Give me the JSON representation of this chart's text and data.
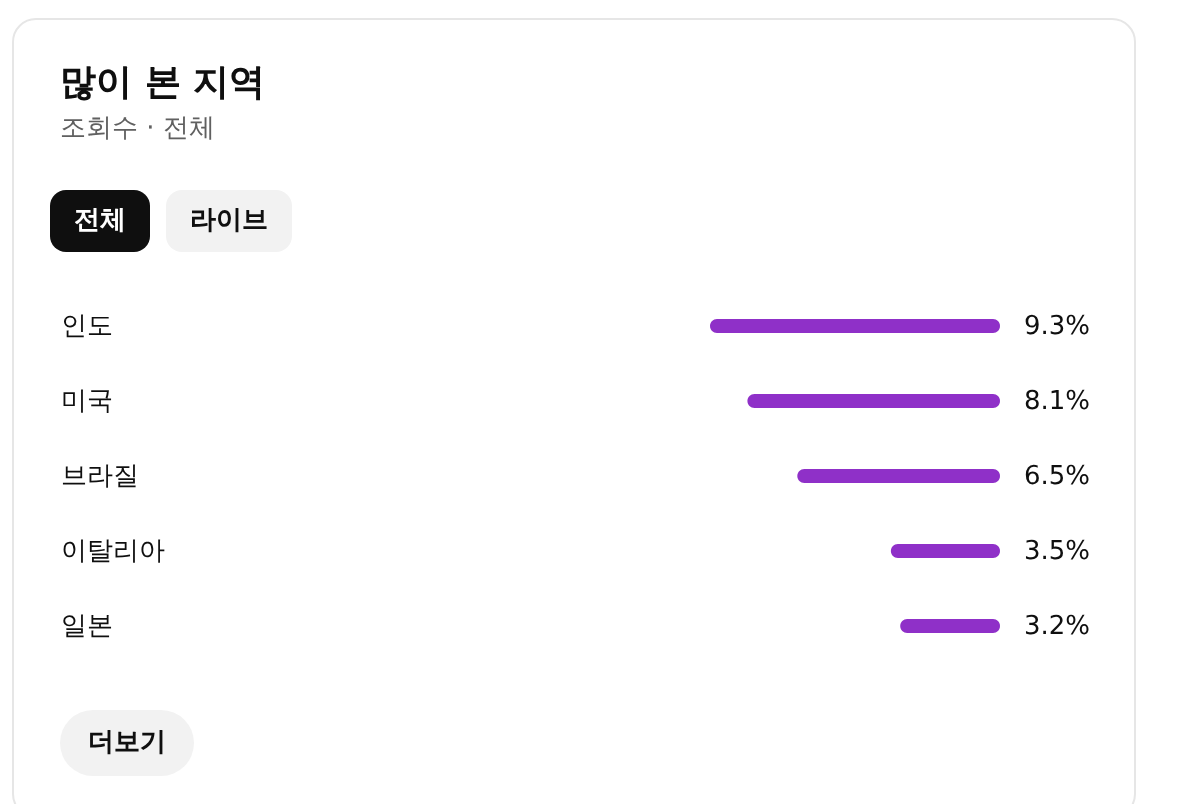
{
  "chart_data": {
    "type": "bar",
    "title": "많이 본 지역",
    "subtitle": "조회수 · 전체",
    "orientation": "horizontal",
    "categories": [
      "인도",
      "미국",
      "브라질",
      "이탈리아",
      "일본"
    ],
    "values": [
      9.3,
      8.1,
      6.5,
      3.5,
      3.2
    ],
    "value_labels": [
      "9.3%",
      "8.1%",
      "6.5%",
      "3.5%",
      "3.2%"
    ],
    "color": "#8f30c8",
    "tick_labels": "y",
    "annotations": [
      "전체",
      "라이브",
      "더보기"
    ]
  }
}
